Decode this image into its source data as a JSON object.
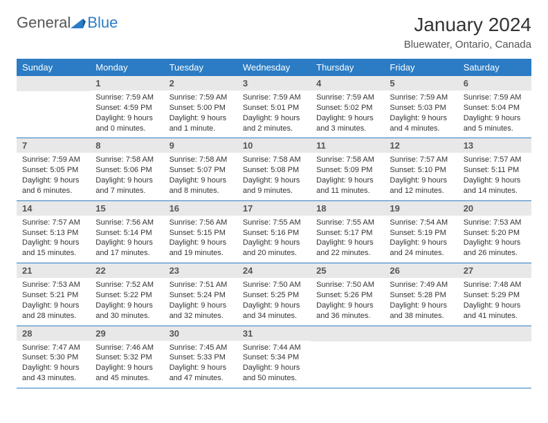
{
  "brand": {
    "text1": "General",
    "text2": "Blue"
  },
  "title": "January 2024",
  "location": "Bluewater, Ontario, Canada",
  "colors": {
    "header_bg": "#2b7cc4",
    "header_text": "#ffffff",
    "daynum_bg": "#e8e8e8",
    "border": "#2b7cc4",
    "body_bg": "#ffffff",
    "text": "#333333"
  },
  "weekdays": [
    "Sunday",
    "Monday",
    "Tuesday",
    "Wednesday",
    "Thursday",
    "Friday",
    "Saturday"
  ],
  "grid": {
    "rows": 5,
    "cols": 7,
    "start_offset": 1,
    "days_in_month": 31
  },
  "days": {
    "1": {
      "sunrise": "7:59 AM",
      "sunset": "4:59 PM",
      "daylight": "9 hours and 0 minutes."
    },
    "2": {
      "sunrise": "7:59 AM",
      "sunset": "5:00 PM",
      "daylight": "9 hours and 1 minute."
    },
    "3": {
      "sunrise": "7:59 AM",
      "sunset": "5:01 PM",
      "daylight": "9 hours and 2 minutes."
    },
    "4": {
      "sunrise": "7:59 AM",
      "sunset": "5:02 PM",
      "daylight": "9 hours and 3 minutes."
    },
    "5": {
      "sunrise": "7:59 AM",
      "sunset": "5:03 PM",
      "daylight": "9 hours and 4 minutes."
    },
    "6": {
      "sunrise": "7:59 AM",
      "sunset": "5:04 PM",
      "daylight": "9 hours and 5 minutes."
    },
    "7": {
      "sunrise": "7:59 AM",
      "sunset": "5:05 PM",
      "daylight": "9 hours and 6 minutes."
    },
    "8": {
      "sunrise": "7:58 AM",
      "sunset": "5:06 PM",
      "daylight": "9 hours and 7 minutes."
    },
    "9": {
      "sunrise": "7:58 AM",
      "sunset": "5:07 PM",
      "daylight": "9 hours and 8 minutes."
    },
    "10": {
      "sunrise": "7:58 AM",
      "sunset": "5:08 PM",
      "daylight": "9 hours and 9 minutes."
    },
    "11": {
      "sunrise": "7:58 AM",
      "sunset": "5:09 PM",
      "daylight": "9 hours and 11 minutes."
    },
    "12": {
      "sunrise": "7:57 AM",
      "sunset": "5:10 PM",
      "daylight": "9 hours and 12 minutes."
    },
    "13": {
      "sunrise": "7:57 AM",
      "sunset": "5:11 PM",
      "daylight": "9 hours and 14 minutes."
    },
    "14": {
      "sunrise": "7:57 AM",
      "sunset": "5:13 PM",
      "daylight": "9 hours and 15 minutes."
    },
    "15": {
      "sunrise": "7:56 AM",
      "sunset": "5:14 PM",
      "daylight": "9 hours and 17 minutes."
    },
    "16": {
      "sunrise": "7:56 AM",
      "sunset": "5:15 PM",
      "daylight": "9 hours and 19 minutes."
    },
    "17": {
      "sunrise": "7:55 AM",
      "sunset": "5:16 PM",
      "daylight": "9 hours and 20 minutes."
    },
    "18": {
      "sunrise": "7:55 AM",
      "sunset": "5:17 PM",
      "daylight": "9 hours and 22 minutes."
    },
    "19": {
      "sunrise": "7:54 AM",
      "sunset": "5:19 PM",
      "daylight": "9 hours and 24 minutes."
    },
    "20": {
      "sunrise": "7:53 AM",
      "sunset": "5:20 PM",
      "daylight": "9 hours and 26 minutes."
    },
    "21": {
      "sunrise": "7:53 AM",
      "sunset": "5:21 PM",
      "daylight": "9 hours and 28 minutes."
    },
    "22": {
      "sunrise": "7:52 AM",
      "sunset": "5:22 PM",
      "daylight": "9 hours and 30 minutes."
    },
    "23": {
      "sunrise": "7:51 AM",
      "sunset": "5:24 PM",
      "daylight": "9 hours and 32 minutes."
    },
    "24": {
      "sunrise": "7:50 AM",
      "sunset": "5:25 PM",
      "daylight": "9 hours and 34 minutes."
    },
    "25": {
      "sunrise": "7:50 AM",
      "sunset": "5:26 PM",
      "daylight": "9 hours and 36 minutes."
    },
    "26": {
      "sunrise": "7:49 AM",
      "sunset": "5:28 PM",
      "daylight": "9 hours and 38 minutes."
    },
    "27": {
      "sunrise": "7:48 AM",
      "sunset": "5:29 PM",
      "daylight": "9 hours and 41 minutes."
    },
    "28": {
      "sunrise": "7:47 AM",
      "sunset": "5:30 PM",
      "daylight": "9 hours and 43 minutes."
    },
    "29": {
      "sunrise": "7:46 AM",
      "sunset": "5:32 PM",
      "daylight": "9 hours and 45 minutes."
    },
    "30": {
      "sunrise": "7:45 AM",
      "sunset": "5:33 PM",
      "daylight": "9 hours and 47 minutes."
    },
    "31": {
      "sunrise": "7:44 AM",
      "sunset": "5:34 PM",
      "daylight": "9 hours and 50 minutes."
    }
  },
  "labels": {
    "sunrise": "Sunrise:",
    "sunset": "Sunset:",
    "daylight": "Daylight:"
  }
}
